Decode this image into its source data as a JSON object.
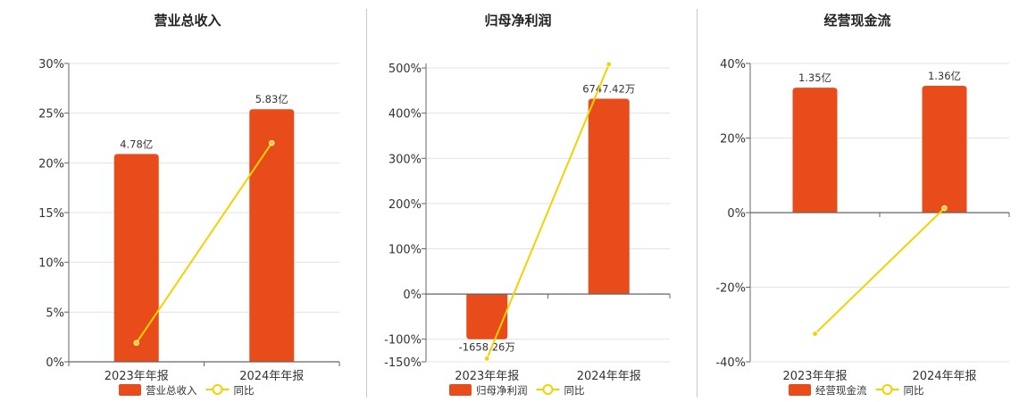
{
  "colors": {
    "bar": "#e84c1a",
    "line": "#f2d200",
    "grid": "#e3e3e3",
    "axis": "#666666"
  },
  "chart_data": [
    {
      "type": "bar",
      "title": "营业总收入",
      "categories": [
        "2023年年报",
        "2024年年报"
      ],
      "series": [
        {
          "name": "营业总收入",
          "kind": "bar",
          "values": [
            20.9,
            25.4
          ],
          "labels": [
            "4.78亿",
            "5.83亿"
          ]
        },
        {
          "name": "同比",
          "kind": "line",
          "values": [
            1.9,
            22.0
          ]
        }
      ],
      "y_ticks": [
        "30%",
        "25%",
        "20%",
        "15%",
        "10%",
        "5%",
        "0%"
      ],
      "ylim": [
        0,
        30
      ],
      "grid": true,
      "legend": "bottom"
    },
    {
      "type": "bar",
      "title": "归母净利润",
      "categories": [
        "2023年年报",
        "2024年年报"
      ],
      "series": [
        {
          "name": "归母净利润",
          "kind": "bar",
          "values": [
            -100,
            432
          ],
          "labels": [
            "-1658.26万",
            "6747.42万"
          ]
        },
        {
          "name": "同比",
          "kind": "line",
          "values": [
            -143,
            508
          ]
        }
      ],
      "y_ticks": [
        "500%",
        "400%",
        "300%",
        "200%",
        "100%",
        "0%",
        "-100%",
        "-150%"
      ],
      "ylim": [
        -150,
        510
      ],
      "grid": true,
      "legend": "bottom"
    },
    {
      "type": "bar",
      "title": "经营现金流",
      "categories": [
        "2023年年报",
        "2024年年报"
      ],
      "series": [
        {
          "name": "经营现金流",
          "kind": "bar",
          "values": [
            33.5,
            34
          ],
          "labels": [
            "1.35亿",
            "1.36亿"
          ]
        },
        {
          "name": "同比",
          "kind": "line",
          "values": [
            -32.5,
            1.2
          ]
        }
      ],
      "y_ticks": [
        "40%",
        "20%",
        "0%",
        "-20%",
        "-40%"
      ],
      "ylim": [
        -40,
        40
      ],
      "grid": true,
      "legend": "bottom"
    }
  ]
}
